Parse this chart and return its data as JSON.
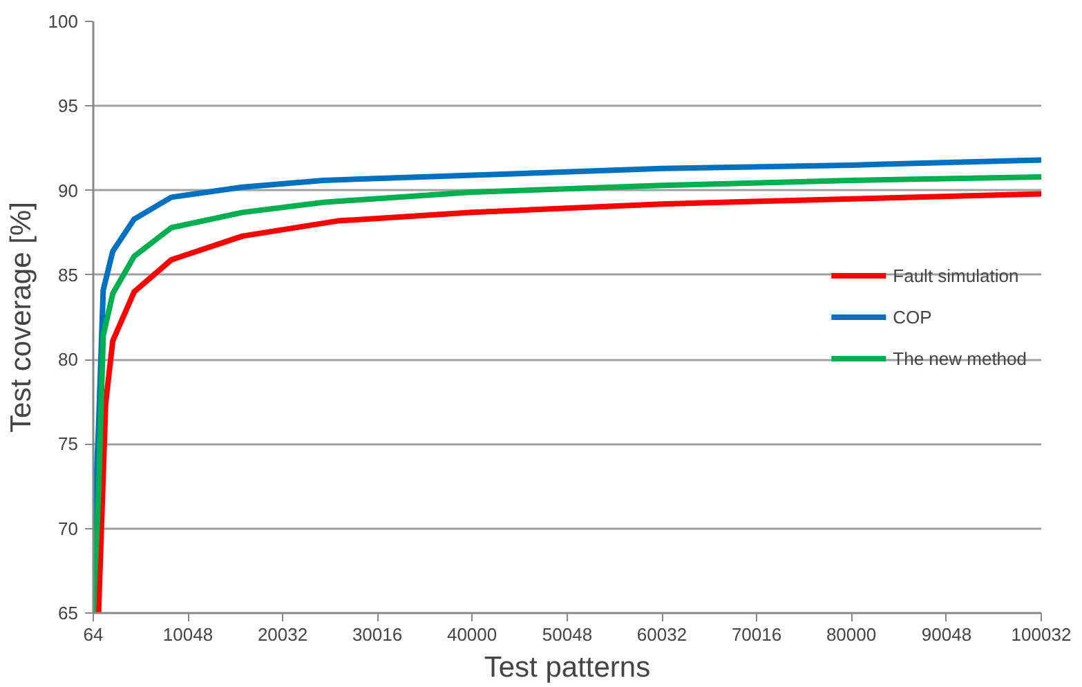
{
  "chart_data": {
    "type": "line",
    "xlabel": "Test patterns",
    "ylabel": "Test coverage [%]",
    "xlim": [
      64,
      100032
    ],
    "xticks": [
      64,
      10048,
      20032,
      30016,
      40000,
      50048,
      60032,
      70016,
      80000,
      90048,
      100032
    ],
    "ylim": [
      65,
      100
    ],
    "yticks": [
      65,
      70,
      75,
      80,
      85,
      90,
      95,
      100
    ],
    "grid": "y",
    "legend": "right",
    "marker": "none",
    "line_style": "solid",
    "series": [
      {
        "name": "Fault simulation",
        "color": "#ff0000",
        "x": [
          620,
          1370,
          2120,
          4370,
          8300,
          15800,
          25850,
          40000,
          60032,
          80000,
          100032
        ],
        "values": [
          65,
          77.4,
          81.1,
          84.0,
          85.9,
          87.3,
          88.2,
          88.7,
          89.2,
          89.5,
          89.8
        ]
      },
      {
        "name": "COP",
        "color": "#0070c0",
        "x": [
          64,
          620,
          1110,
          2120,
          4370,
          8300,
          15800,
          24350,
          40000,
          60032,
          80000,
          100032
        ],
        "values": [
          68.7,
          76,
          84.1,
          86.4,
          88.3,
          89.6,
          90.2,
          90.6,
          90.9,
          91.3,
          91.5,
          91.8
        ]
      },
      {
        "name": "The new method",
        "color": "#00b050",
        "x": [
          64,
          620,
          1110,
          2120,
          4370,
          8300,
          15800,
          24350,
          40000,
          60032,
          80000,
          100032
        ],
        "values": [
          65,
          72,
          81.4,
          83.9,
          86.1,
          87.8,
          88.7,
          89.3,
          89.9,
          90.3,
          90.6,
          90.8
        ]
      }
    ]
  }
}
